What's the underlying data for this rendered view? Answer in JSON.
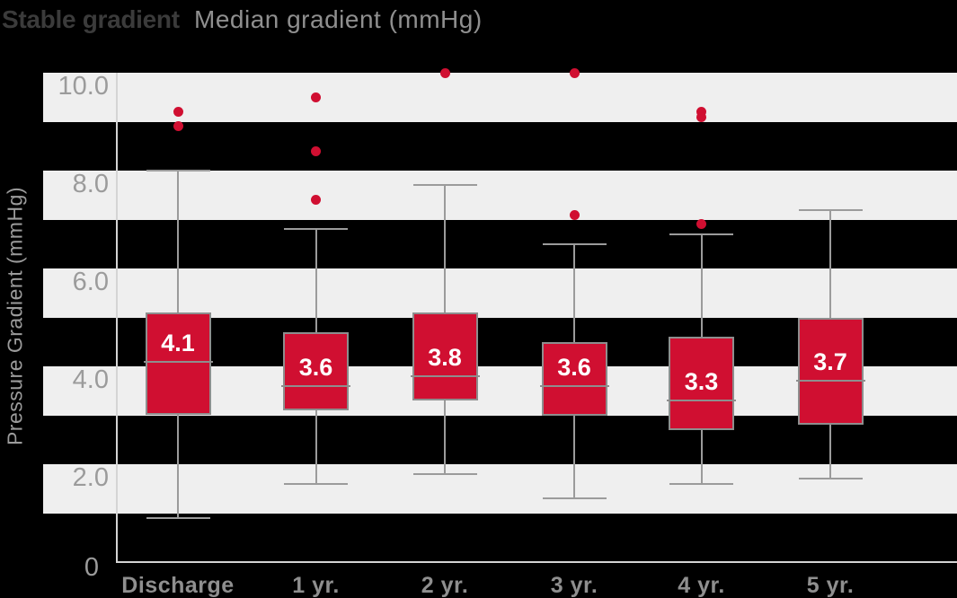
{
  "title": {
    "primary": "Stable gradient",
    "secondary": "Median gradient (mmHg)"
  },
  "y_axis": {
    "label": "Pressure Gradient (mmHg)",
    "ticks": [
      "10.0",
      "8.0",
      "6.0",
      "4.0",
      "2.0"
    ],
    "zero_label": "0"
  },
  "colors": {
    "background": "#000000",
    "band": "#efefef",
    "box_red": "#d00f31",
    "border_gray": "#8e8e8e",
    "line_gray": "#9b9b9b",
    "axis_gray": "#d4d4d4",
    "text_gray": "#8f8f8f",
    "title_dark": "#3b3b3b",
    "median_text": "#ffffff"
  },
  "chart_data": {
    "type": "boxplot",
    "title": "Stable gradient — Median gradient (mmHg)",
    "ylabel": "Pressure Gradient (mmHg)",
    "ylim": [
      0,
      10
    ],
    "yticks": [
      10.0,
      8.0,
      6.0,
      4.0,
      2.0,
      0
    ],
    "grid_bands": [
      [
        9,
        10
      ],
      [
        7,
        8
      ],
      [
        5,
        6
      ],
      [
        3,
        4
      ],
      [
        1,
        2
      ]
    ],
    "categories": [
      "Discharge",
      "1 yr.",
      "2 yr.",
      "3 yr.",
      "4 yr.",
      "5 yr."
    ],
    "series": [
      {
        "category": "Discharge",
        "median_label": "4.1",
        "median": 4.1,
        "q1": 3.0,
        "q3": 5.1,
        "whisker_low": 0.9,
        "whisker_high": 8.0,
        "outliers": [
          9.2,
          8.9
        ]
      },
      {
        "category": "1 yr.",
        "median_label": "3.6",
        "median": 3.6,
        "q1": 3.1,
        "q3": 4.7,
        "whisker_low": 1.6,
        "whisker_high": 6.8,
        "outliers": [
          9.5,
          8.4,
          7.4
        ]
      },
      {
        "category": "2 yr.",
        "median_label": "3.8",
        "median": 3.8,
        "q1": 3.3,
        "q3": 5.1,
        "whisker_low": 1.8,
        "whisker_high": 7.7,
        "outliers": [
          10.0
        ]
      },
      {
        "category": "3 yr.",
        "median_label": "3.6",
        "median": 3.6,
        "q1": 3.0,
        "q3": 4.5,
        "whisker_low": 1.3,
        "whisker_high": 6.5,
        "outliers": [
          10.0,
          7.1
        ]
      },
      {
        "category": "4 yr.",
        "median_label": "3.3",
        "median": 3.3,
        "q1": 2.7,
        "q3": 4.6,
        "whisker_low": 1.6,
        "whisker_high": 6.7,
        "outliers": [
          9.2,
          9.1,
          6.9
        ]
      },
      {
        "category": "5 yr.",
        "median_label": "3.7",
        "median": 3.7,
        "q1": 2.8,
        "q3": 5.0,
        "whisker_low": 1.7,
        "whisker_high": 7.2,
        "outliers": []
      }
    ]
  }
}
